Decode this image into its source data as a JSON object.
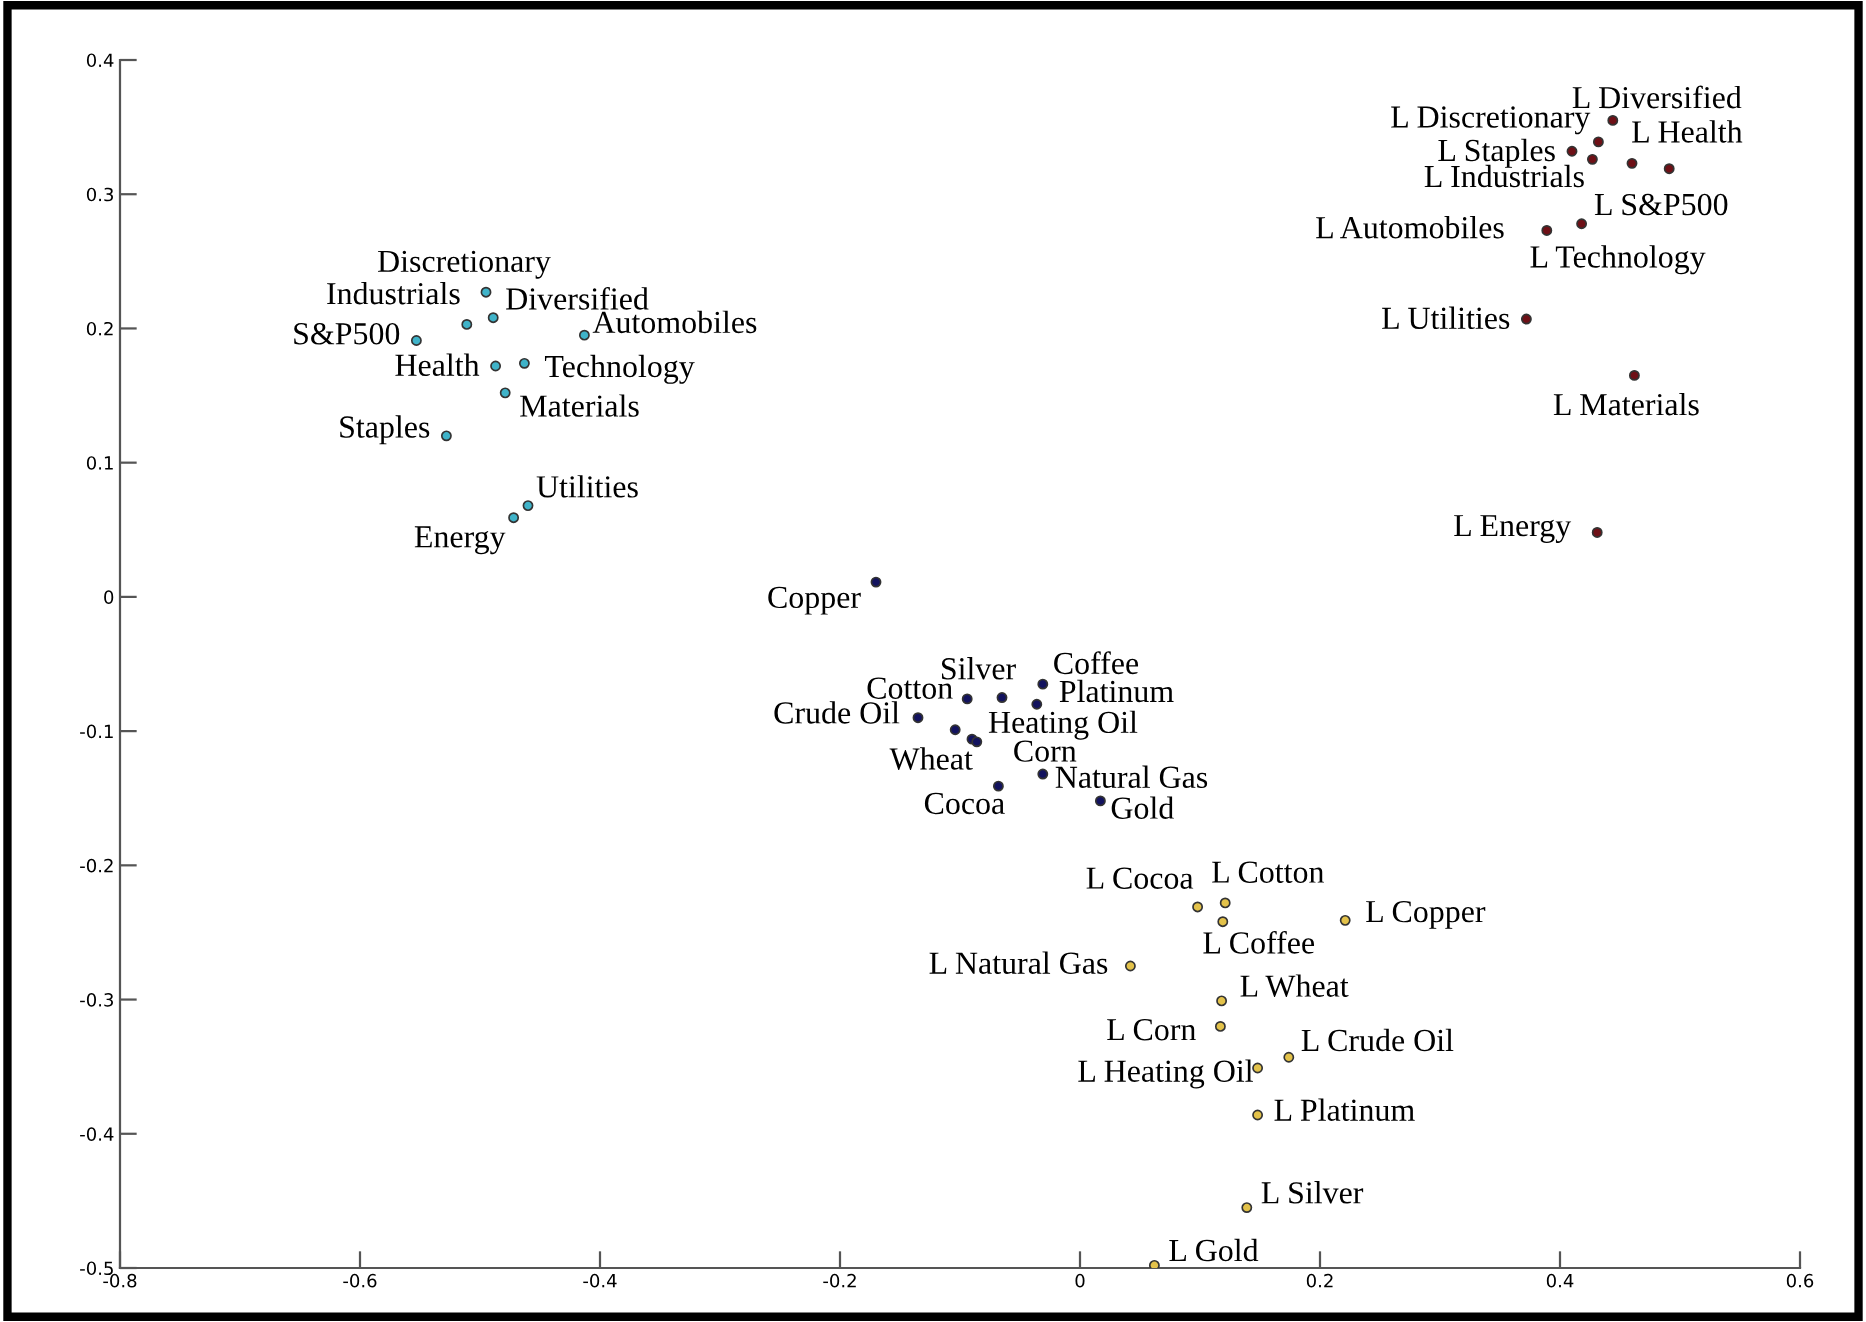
{
  "chart_data": {
    "type": "scatter",
    "marker": "circle",
    "legend": false,
    "grid": false,
    "xlim": [
      -0.8,
      0.6
    ],
    "ylim": [
      -0.5,
      0.4
    ],
    "xticks": [
      -0.8,
      -0.6,
      -0.4,
      -0.2,
      0,
      0.2,
      0.4,
      0.6
    ],
    "yticks": [
      -0.5,
      -0.4,
      -0.3,
      -0.2,
      -0.1,
      0,
      0.1,
      0.2,
      0.3,
      0.4
    ],
    "series": [
      {
        "color": "#3fb3c9",
        "x": [
          -0.495,
          -0.511,
          -0.489,
          -0.553,
          -0.413,
          -0.487,
          -0.463,
          -0.479,
          -0.528,
          -0.46,
          -0.472
        ],
        "values": [
          0.227,
          0.203,
          0.208,
          0.191,
          0.195,
          0.172,
          0.174,
          0.152,
          0.12,
          0.068,
          0.059
        ]
      },
      {
        "color": "#6e1016",
        "x": [
          0.444,
          0.432,
          0.41,
          0.427,
          0.491,
          0.46,
          0.389,
          0.418,
          0.372,
          0.462,
          0.431
        ],
        "values": [
          0.355,
          0.339,
          0.332,
          0.326,
          0.319,
          0.323,
          0.273,
          0.278,
          0.207,
          0.165,
          0.048
        ]
      },
      {
        "color": "#12125e",
        "x": [
          -0.17,
          -0.031,
          -0.065,
          -0.094,
          -0.036,
          -0.135,
          -0.104,
          -0.09,
          -0.086,
          -0.068,
          -0.031,
          0.017
        ],
        "values": [
          0.011,
          -0.065,
          -0.075,
          -0.076,
          -0.08,
          -0.09,
          -0.099,
          -0.106,
          -0.108,
          -0.141,
          -0.132,
          -0.152
        ]
      },
      {
        "color": "#e3c24a",
        "x": [
          0.098,
          0.121,
          0.119,
          0.221,
          0.042,
          0.118,
          0.117,
          0.148,
          0.174,
          0.148,
          0.139,
          0.062
        ],
        "values": [
          -0.231,
          -0.228,
          -0.242,
          -0.241,
          -0.275,
          -0.301,
          -0.32,
          -0.351,
          -0.343,
          -0.386,
          -0.455,
          -0.498
        ]
      }
    ],
    "annotations": [
      {
        "text": "Discretionary",
        "x": -0.495,
        "y": 0.227
      },
      {
        "text": "Industrials",
        "x": -0.511,
        "y": 0.203
      },
      {
        "text": "Diversified",
        "x": -0.489,
        "y": 0.208
      },
      {
        "text": "S&P500",
        "x": -0.553,
        "y": 0.191
      },
      {
        "text": "Automobiles",
        "x": -0.413,
        "y": 0.195
      },
      {
        "text": "Health",
        "x": -0.487,
        "y": 0.172
      },
      {
        "text": "Technology",
        "x": -0.463,
        "y": 0.174
      },
      {
        "text": "Materials",
        "x": -0.479,
        "y": 0.152
      },
      {
        "text": "Staples",
        "x": -0.528,
        "y": 0.12
      },
      {
        "text": "Utilities",
        "x": -0.46,
        "y": 0.068
      },
      {
        "text": "Energy",
        "x": -0.472,
        "y": 0.059
      },
      {
        "text": "L Diversified",
        "x": 0.444,
        "y": 0.355
      },
      {
        "text": "L Discretionary",
        "x": 0.432,
        "y": 0.339
      },
      {
        "text": "L Staples",
        "x": 0.41,
        "y": 0.332
      },
      {
        "text": "L Industrials",
        "x": 0.427,
        "y": 0.326
      },
      {
        "text": "L Health",
        "x": 0.491,
        "y": 0.319
      },
      {
        "text": "L S&P500",
        "x": 0.46,
        "y": 0.323
      },
      {
        "text": "L Automobiles",
        "x": 0.389,
        "y": 0.273
      },
      {
        "text": "L Technology",
        "x": 0.418,
        "y": 0.278
      },
      {
        "text": "L Utilities",
        "x": 0.372,
        "y": 0.207
      },
      {
        "text": "L Materials",
        "x": 0.462,
        "y": 0.165
      },
      {
        "text": "L Energy",
        "x": 0.431,
        "y": 0.048
      },
      {
        "text": "Copper",
        "x": -0.17,
        "y": 0.011
      },
      {
        "text": "Coffee",
        "x": -0.031,
        "y": -0.065
      },
      {
        "text": "Silver",
        "x": -0.065,
        "y": -0.075
      },
      {
        "text": "Cotton",
        "x": -0.094,
        "y": -0.076
      },
      {
        "text": "Platinum",
        "x": -0.036,
        "y": -0.08
      },
      {
        "text": "Crude Oil",
        "x": -0.135,
        "y": -0.09
      },
      {
        "text": "Wheat",
        "x": -0.104,
        "y": -0.099
      },
      {
        "text": "Heating Oil",
        "x": -0.09,
        "y": -0.106
      },
      {
        "text": "Corn",
        "x": -0.086,
        "y": -0.108
      },
      {
        "text": "Cocoa",
        "x": -0.068,
        "y": -0.141
      },
      {
        "text": "Natural Gas",
        "x": -0.031,
        "y": -0.132
      },
      {
        "text": "Gold",
        "x": 0.017,
        "y": -0.152
      },
      {
        "text": "L Cocoa",
        "x": 0.098,
        "y": -0.231
      },
      {
        "text": "L Cotton",
        "x": 0.121,
        "y": -0.228
      },
      {
        "text": "L Coffee",
        "x": 0.119,
        "y": -0.242
      },
      {
        "text": "L Copper",
        "x": 0.221,
        "y": -0.241
      },
      {
        "text": "L Natural Gas",
        "x": 0.042,
        "y": -0.275
      },
      {
        "text": "L Wheat",
        "x": 0.118,
        "y": -0.301
      },
      {
        "text": "L Corn",
        "x": 0.117,
        "y": -0.32
      },
      {
        "text": "L Heating Oil",
        "x": 0.148,
        "y": -0.351
      },
      {
        "text": "L Crude Oil",
        "x": 0.174,
        "y": -0.343
      },
      {
        "text": "L Platinum",
        "x": 0.148,
        "y": -0.386
      },
      {
        "text": "L Silver",
        "x": 0.139,
        "y": -0.455
      },
      {
        "text": "L Gold",
        "x": 0.062,
        "y": -0.498
      }
    ]
  }
}
